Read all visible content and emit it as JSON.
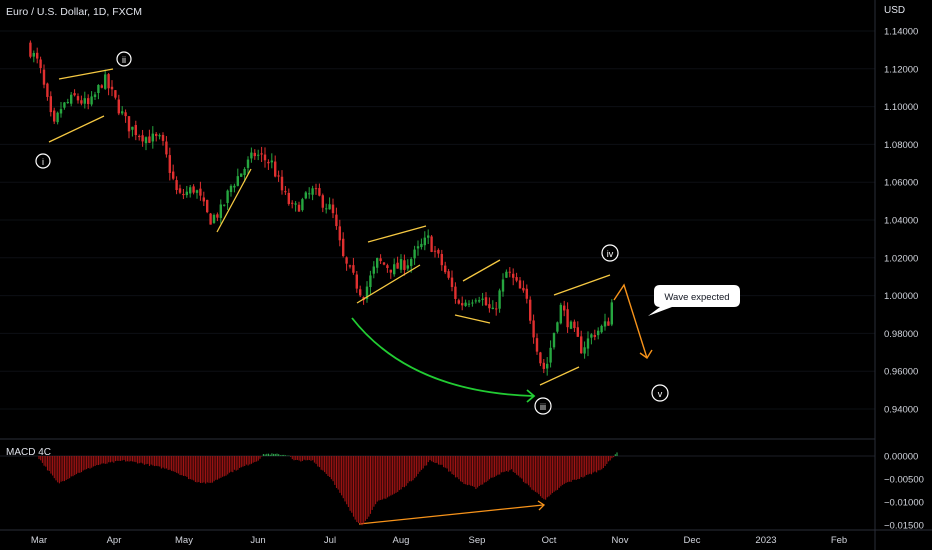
{
  "header": {
    "symbol_title": "Euro / U.S. Dollar, 1D, FXCM"
  },
  "price_axis": {
    "currency": "USD",
    "ticks": [
      "1.14000",
      "1.12000",
      "1.10000",
      "1.08000",
      "1.06000",
      "1.04000",
      "1.02000",
      "1.00000",
      "0.98000",
      "0.96000",
      "0.94000"
    ]
  },
  "macd_axis": {
    "ticks": [
      "0.00000",
      "−0.00500",
      "−0.01000",
      "−0.01500"
    ]
  },
  "indicator": {
    "label": "MACD 4C"
  },
  "time_axis": {
    "labels": [
      "Mar",
      "Apr",
      "May",
      "Jun",
      "Jul",
      "Aug",
      "Sep",
      "Oct",
      "Nov",
      "Dec",
      "2023",
      "Feb"
    ]
  },
  "annotations": {
    "wave_labels": [
      "i",
      "ii",
      "iii",
      "iv",
      "v"
    ],
    "callout": "Wave expected"
  },
  "colors": {
    "up": "#26a640",
    "down": "#e03030",
    "channel": "#f5c842",
    "arc": "#22cc33",
    "projection": "#f7931a",
    "background": "#000000"
  },
  "chart_data": [
    {
      "type": "candlestick",
      "title": "Euro / U.S. Dollar, 1D, FXCM",
      "ylabel": "USD",
      "ylim": [
        0.935,
        1.145
      ],
      "x": [
        "Mar",
        "Apr",
        "May",
        "Jun",
        "Jul",
        "Aug",
        "Sep",
        "Oct",
        "Nov",
        "Dec",
        "2023",
        "Feb"
      ],
      "close_path": [
        [
          "Feb-24",
          1.133
        ],
        [
          "Mar-01",
          1.122
        ],
        [
          "Mar-07",
          1.088
        ],
        [
          "Mar-10",
          1.099
        ],
        [
          "Mar-16",
          1.105
        ],
        [
          "Mar-22",
          1.1
        ],
        [
          "Mar-28",
          1.115
        ],
        [
          "Apr-01",
          1.105
        ],
        [
          "Apr-07",
          1.09
        ],
        [
          "Apr-14",
          1.084
        ],
        [
          "Apr-21",
          1.082
        ],
        [
          "Apr-28",
          1.052
        ],
        [
          "May-05",
          1.057
        ],
        [
          "May-11",
          1.04
        ],
        [
          "May-16",
          1.045
        ],
        [
          "May-20",
          1.058
        ],
        [
          "May-30",
          1.075
        ],
        [
          "Jun-06",
          1.07
        ],
        [
          "Jun-10",
          1.056
        ],
        [
          "Jun-15",
          1.045
        ],
        [
          "Jun-23",
          1.055
        ],
        [
          "Jul-01",
          1.045
        ],
        [
          "Jul-06",
          1.018
        ],
        [
          "Jul-14",
          1.0
        ],
        [
          "Jul-20",
          1.018
        ],
        [
          "Jul-27",
          1.014
        ],
        [
          "Aug-02",
          1.018
        ],
        [
          "Aug-10",
          1.03
        ],
        [
          "Aug-16",
          1.016
        ],
        [
          "Aug-23",
          0.995
        ],
        [
          "Aug-31",
          1.001
        ],
        [
          "Sep-06",
          0.99
        ],
        [
          "Sep-12",
          1.013
        ],
        [
          "Sep-20",
          0.998
        ],
        [
          "Sep-26",
          0.965
        ],
        [
          "Sep-28",
          0.96
        ],
        [
          "Oct-04",
          0.995
        ],
        [
          "Oct-13",
          0.972
        ],
        [
          "Oct-18",
          0.98
        ],
        [
          "Oct-24",
          0.985
        ],
        [
          "Oct-27",
          1.005
        ]
      ]
    },
    {
      "type": "bar",
      "title": "MACD 4C",
      "ylim": [
        -0.0155,
        0.0012
      ],
      "histogram_path": [
        [
          "Mar-01",
          -0.0005
        ],
        [
          "Mar-09",
          -0.006
        ],
        [
          "Mar-16",
          -0.004
        ],
        [
          "Mar-25",
          -0.002
        ],
        [
          "Apr-05",
          -0.001
        ],
        [
          "Apr-12",
          -0.0015
        ],
        [
          "Apr-25",
          -0.003
        ],
        [
          "May-05",
          -0.0055
        ],
        [
          "May-11",
          -0.006
        ],
        [
          "May-20",
          -0.0035
        ],
        [
          "May-31",
          -0.001
        ],
        [
          "Jun-03",
          0.0005
        ],
        [
          "Jun-13",
          0.0002
        ],
        [
          "Jun-15",
          -0.001
        ],
        [
          "Jun-23",
          -0.001
        ],
        [
          "Jul-01",
          -0.005
        ],
        [
          "Jul-11",
          -0.014
        ],
        [
          "Jul-14",
          -0.015
        ],
        [
          "Jul-20",
          -0.01
        ],
        [
          "Jul-28",
          -0.008
        ],
        [
          "Aug-04",
          -0.005
        ],
        [
          "Aug-11",
          -0.001
        ],
        [
          "Aug-16",
          -0.002
        ],
        [
          "Aug-25",
          -0.006
        ],
        [
          "Aug-30",
          -0.007
        ],
        [
          "Sep-08",
          -0.004
        ],
        [
          "Sep-14",
          -0.003
        ],
        [
          "Sep-22",
          -0.007
        ],
        [
          "Sep-28",
          -0.0095
        ],
        [
          "Oct-06",
          -0.006
        ],
        [
          "Oct-14",
          -0.0045
        ],
        [
          "Oct-21",
          -0.003
        ],
        [
          "Oct-25",
          -0.001
        ],
        [
          "Oct-28",
          0.001
        ]
      ]
    }
  ]
}
